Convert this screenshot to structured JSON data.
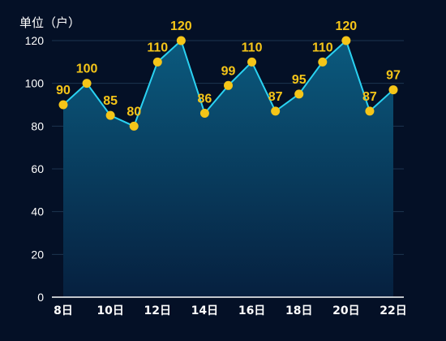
{
  "colors": {
    "background": "#041026",
    "line": "#2ad2f2",
    "point_fill": "#f5c518",
    "data_label": "#f5c518",
    "axis_text": "#ffffff",
    "axis_line": "#ffffff",
    "grid": "#1c3550",
    "area_top": "#0b5a7e",
    "area_bottom": "#06203f",
    "drop_line": "#9fe6ff"
  },
  "chart_data": {
    "type": "area",
    "unit_label": "单位（户）",
    "x": [
      8,
      9,
      10,
      11,
      12,
      13,
      14,
      15,
      16,
      17,
      18,
      19,
      20,
      21,
      22
    ],
    "x_tick_labels": [
      "8日",
      "10日",
      "12日",
      "14日",
      "16日",
      "18日",
      "20日",
      "22日"
    ],
    "x_tick_values": [
      8,
      10,
      12,
      14,
      16,
      18,
      20,
      22
    ],
    "values": [
      90,
      100,
      85,
      80,
      110,
      120,
      86,
      99,
      110,
      87,
      95,
      110,
      120,
      87,
      97
    ],
    "ylim": [
      0,
      120
    ],
    "y_ticks": [
      0,
      20,
      40,
      60,
      80,
      100,
      120
    ],
    "grid": true,
    "legend": "none"
  }
}
